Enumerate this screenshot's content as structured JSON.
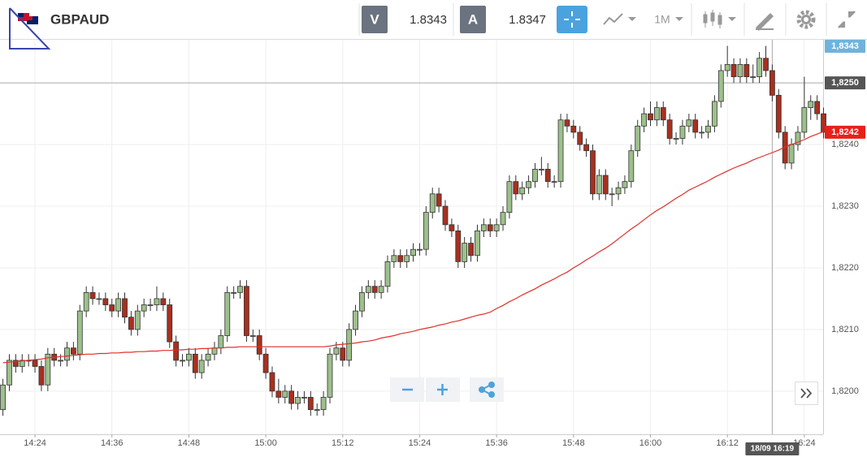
{
  "toolbar": {
    "symbol": "GBPAUD",
    "sell_label": "V",
    "sell_price": "1.8343",
    "buy_label": "A",
    "buy_price": "1.8347",
    "timeframe": "1M"
  },
  "chart_data": {
    "type": "candlestick",
    "categories": [
      null,
      null,
      null,
      null,
      null,
      "14:24",
      null,
      null,
      null,
      null,
      null,
      null,
      null,
      null,
      null,
      null,
      null,
      "14:36",
      null,
      null,
      null,
      null,
      null,
      null,
      null,
      null,
      null,
      null,
      null,
      "14:48",
      null,
      null,
      null,
      null,
      null,
      null,
      null,
      null,
      null,
      null,
      null,
      "15:00",
      null,
      null,
      null,
      null,
      null,
      null,
      null,
      null,
      null,
      null,
      null,
      "15:12",
      null,
      null,
      null,
      null,
      null,
      null,
      null,
      null,
      null,
      null,
      null,
      "15:24",
      null,
      null,
      null,
      null,
      null,
      null,
      null,
      null,
      null,
      null,
      null,
      "15:36",
      null,
      null,
      null,
      null,
      null,
      null,
      null,
      null,
      null,
      null,
      null,
      "15:48",
      null,
      null,
      null,
      null,
      null,
      null,
      null,
      null,
      null,
      null,
      null,
      "16:00",
      null,
      null,
      null,
      null,
      null,
      null,
      null,
      null,
      null,
      null,
      null,
      "16:12",
      null,
      null,
      null,
      null,
      null,
      null,
      null,
      null,
      null,
      null,
      null,
      "16:24",
      null,
      null,
      null
    ],
    "open": [
      1.8197,
      1.8201,
      1.8205,
      1.8204,
      1.8205,
      1.8205,
      1.8204,
      1.8201,
      1.8206,
      1.8205,
      1.8205,
      1.8207,
      1.8206,
      1.8213,
      1.8216,
      1.8215,
      1.8215,
      1.8214,
      1.8213,
      1.8215,
      1.8212,
      1.821,
      1.8213,
      1.8214,
      1.8214,
      1.8215,
      1.8214,
      1.8208,
      1.8205,
      1.8205,
      1.8206,
      1.8203,
      1.8205,
      1.8206,
      1.8207,
      1.8209,
      1.8216,
      1.8216,
      1.8217,
      1.8209,
      1.8209,
      1.8206,
      1.8203,
      1.82,
      1.8199,
      1.82,
      1.8198,
      1.8199,
      1.8199,
      1.8197,
      1.8197,
      1.8199,
      1.8206,
      1.8207,
      1.8205,
      1.821,
      1.8213,
      1.8216,
      1.8217,
      1.8216,
      1.8217,
      1.8221,
      1.8222,
      1.8221,
      1.8222,
      1.8223,
      1.8223,
      1.8229,
      1.8232,
      1.823,
      1.8227,
      1.8226,
      1.8221,
      1.8224,
      1.8222,
      1.8226,
      1.8227,
      1.8226,
      1.8227,
      1.8229,
      1.8234,
      1.8232,
      1.8233,
      1.8234,
      1.8236,
      1.8236,
      1.8234,
      1.8234,
      1.8244,
      1.8243,
      1.8242,
      1.824,
      1.8239,
      1.8232,
      1.8235,
      1.8232,
      1.8232,
      1.8233,
      1.8234,
      1.8239,
      1.8243,
      1.8245,
      1.8244,
      1.8246,
      1.8244,
      1.8241,
      1.8241,
      1.8243,
      1.8244,
      1.8242,
      1.8242,
      1.8243,
      1.8247,
      1.8252,
      1.8253,
      1.8251,
      1.8253,
      1.8251,
      1.8251,
      1.8254,
      1.8252,
      1.8248,
      1.8242,
      1.8237,
      1.824,
      1.8242,
      1.8246,
      1.8247,
      1.8245
    ],
    "high": [
      1.8202,
      1.8206,
      1.8206,
      1.8206,
      1.8206,
      1.8206,
      1.8205,
      1.8207,
      1.8207,
      1.8206,
      1.8208,
      1.8208,
      1.8214,
      1.8217,
      1.8217,
      1.8216,
      1.8216,
      1.8215,
      1.8216,
      1.8216,
      1.8213,
      1.8214,
      1.8215,
      1.8215,
      1.8217,
      1.8216,
      1.8215,
      1.8209,
      1.8206,
      1.8207,
      1.8207,
      1.8206,
      1.8207,
      1.8208,
      1.821,
      1.8217,
      1.8217,
      1.8218,
      1.8218,
      1.821,
      1.821,
      1.8207,
      1.8204,
      1.8202,
      1.8201,
      1.8201,
      1.82,
      1.82,
      1.82,
      1.8198,
      1.82,
      1.8207,
      1.8208,
      1.8208,
      1.8211,
      1.8214,
      1.8217,
      1.8218,
      1.8218,
      1.8218,
      1.8222,
      1.8223,
      1.8223,
      1.8223,
      1.8224,
      1.8224,
      1.823,
      1.8233,
      1.8233,
      1.8231,
      1.8228,
      1.8227,
      1.8225,
      1.8225,
      1.8227,
      1.8228,
      1.8228,
      1.8228,
      1.823,
      1.8235,
      1.8235,
      1.8234,
      1.8235,
      1.8237,
      1.8238,
      1.8237,
      1.8235,
      1.8245,
      1.8245,
      1.8244,
      1.8243,
      1.8241,
      1.824,
      1.8236,
      1.8236,
      1.8233,
      1.8234,
      1.8235,
      1.824,
      1.8244,
      1.8246,
      1.8247,
      1.8247,
      1.8247,
      1.8245,
      1.8242,
      1.8244,
      1.8245,
      1.8245,
      1.8243,
      1.8244,
      1.8248,
      1.8253,
      1.8256,
      1.8254,
      1.8254,
      1.8254,
      1.8253,
      1.8255,
      1.8256,
      1.8253,
      1.8249,
      1.8243,
      1.8241,
      1.8243,
      1.8251,
      1.8248,
      1.8248,
      1.8246
    ],
    "low": [
      1.8196,
      1.82,
      1.8203,
      1.8203,
      1.8204,
      1.8203,
      1.82,
      1.82,
      1.8204,
      1.8204,
      1.8204,
      1.8205,
      1.8205,
      1.8212,
      1.8214,
      1.8214,
      1.8213,
      1.8212,
      1.8212,
      1.8211,
      1.8209,
      1.8209,
      1.8212,
      1.8213,
      1.8213,
      1.8213,
      1.8207,
      1.8204,
      1.8204,
      1.8204,
      1.8202,
      1.8202,
      1.8204,
      1.8205,
      1.8206,
      1.8208,
      1.8215,
      1.8215,
      1.8208,
      1.8208,
      1.8205,
      1.8202,
      1.8199,
      1.8198,
      1.8198,
      1.8197,
      1.8197,
      1.8198,
      1.8196,
      1.8196,
      1.8196,
      1.8198,
      1.8205,
      1.8204,
      1.8204,
      1.8209,
      1.8212,
      1.8215,
      1.8215,
      1.8215,
      1.8216,
      1.822,
      1.822,
      1.822,
      1.8221,
      1.8222,
      1.8222,
      1.8228,
      1.8229,
      1.8226,
      1.8225,
      1.822,
      1.822,
      1.8221,
      1.8221,
      1.8225,
      1.8225,
      1.8225,
      1.8226,
      1.8228,
      1.8231,
      1.8231,
      1.8232,
      1.8233,
      1.8235,
      1.8233,
      1.8233,
      1.8233,
      1.8242,
      1.8241,
      1.8239,
      1.8238,
      1.8231,
      1.8231,
      1.8231,
      1.823,
      1.8231,
      1.8232,
      1.8233,
      1.8238,
      1.8242,
      1.8243,
      1.8243,
      1.8243,
      1.824,
      1.824,
      1.824,
      1.8242,
      1.8241,
      1.8241,
      1.8241,
      1.8242,
      1.8246,
      1.8251,
      1.825,
      1.825,
      1.825,
      1.825,
      1.825,
      1.8251,
      1.8247,
      1.8241,
      1.8236,
      1.8236,
      1.8239,
      1.8241,
      1.8244,
      1.8244,
      1.8241
    ],
    "close": [
      1.8201,
      1.8205,
      1.8204,
      1.8205,
      1.8205,
      1.8204,
      1.8201,
      1.8206,
      1.8205,
      1.8205,
      1.8207,
      1.8206,
      1.8213,
      1.8216,
      1.8215,
      1.8215,
      1.8214,
      1.8213,
      1.8215,
      1.8212,
      1.821,
      1.8213,
      1.8214,
      1.8214,
      1.8215,
      1.8214,
      1.8208,
      1.8205,
      1.8205,
      1.8206,
      1.8203,
      1.8205,
      1.8206,
      1.8207,
      1.8209,
      1.8216,
      1.8216,
      1.8217,
      1.8209,
      1.8209,
      1.8206,
      1.8203,
      1.82,
      1.8199,
      1.82,
      1.8198,
      1.8199,
      1.8199,
      1.8197,
      1.8197,
      1.8199,
      1.8206,
      1.8207,
      1.8205,
      1.821,
      1.8213,
      1.8216,
      1.8217,
      1.8216,
      1.8217,
      1.8221,
      1.8222,
      1.8221,
      1.8222,
      1.8223,
      1.8223,
      1.8229,
      1.8232,
      1.823,
      1.8227,
      1.8226,
      1.8221,
      1.8224,
      1.8222,
      1.8226,
      1.8227,
      1.8226,
      1.8227,
      1.8229,
      1.8234,
      1.8232,
      1.8233,
      1.8234,
      1.8236,
      1.8236,
      1.8234,
      1.8234,
      1.8244,
      1.8243,
      1.8242,
      1.824,
      1.8239,
      1.8232,
      1.8235,
      1.8232,
      1.8232,
      1.8233,
      1.8234,
      1.8239,
      1.8243,
      1.8245,
      1.8244,
      1.8246,
      1.8244,
      1.8241,
      1.8241,
      1.8243,
      1.8244,
      1.8242,
      1.8242,
      1.8243,
      1.8247,
      1.8252,
      1.8253,
      1.8251,
      1.8253,
      1.8251,
      1.8251,
      1.8254,
      1.8252,
      1.8248,
      1.8242,
      1.8237,
      1.824,
      1.8242,
      1.8246,
      1.8247,
      1.8245,
      1.8242
    ],
    "up_color": "#9dc08b",
    "down_color": "#a8301f",
    "moving_average": {
      "color": "#e0302a",
      "values": [
        1.82046,
        1.82047,
        1.82048,
        1.82049,
        1.8205,
        1.82051,
        1.82052,
        1.82054,
        1.82055,
        1.82056,
        1.82057,
        1.82058,
        1.82059,
        1.8206,
        1.8206,
        1.82061,
        1.82061,
        1.82062,
        1.82062,
        1.82063,
        1.82063,
        1.82064,
        1.82064,
        1.82065,
        1.82065,
        1.82066,
        1.82066,
        1.82067,
        1.82067,
        1.82068,
        1.82068,
        1.82069,
        1.82069,
        1.8207,
        1.8207,
        1.82071,
        1.82071,
        1.82072,
        1.82072,
        1.82072,
        1.82072,
        1.82072,
        1.82072,
        1.82072,
        1.82072,
        1.82072,
        1.82072,
        1.82072,
        1.82072,
        1.82072,
        1.82072,
        1.82073,
        1.82075,
        1.82076,
        1.82077,
        1.82078,
        1.8208,
        1.82081,
        1.82083,
        1.82086,
        1.82088,
        1.8209,
        1.82093,
        1.82095,
        1.82097,
        1.821,
        1.82102,
        1.82104,
        1.82107,
        1.82109,
        1.82112,
        1.82114,
        1.82117,
        1.8212,
        1.82123,
        1.82125,
        1.82128,
        1.82134,
        1.82139,
        1.82145,
        1.8215,
        1.82156,
        1.82161,
        1.82166,
        1.82172,
        1.82177,
        1.82182,
        1.82188,
        1.82193,
        1.822,
        1.82206,
        1.82213,
        1.82219,
        1.82226,
        1.82232,
        1.82239,
        1.82247,
        1.82255,
        1.82263,
        1.8227,
        1.82278,
        1.82286,
        1.82293,
        1.82299,
        1.82306,
        1.82313,
        1.82319,
        1.82326,
        1.82331,
        1.82336,
        1.82341,
        1.82347,
        1.82352,
        1.82357,
        1.82362,
        1.82366,
        1.8237,
        1.82375,
        1.82379,
        1.82383,
        1.82387,
        1.82391,
        1.82396,
        1.824,
        1.82404,
        1.82408,
        1.82413,
        1.82417,
        1.82421
      ]
    },
    "ylim": [
      1.8193,
      1.8257
    ],
    "yticks": [
      {
        "value": 1.824,
        "label": "1,8240"
      },
      {
        "value": 1.823,
        "label": "1,8230"
      },
      {
        "value": 1.822,
        "label": "1,8220"
      },
      {
        "value": 1.821,
        "label": "1,8210"
      },
      {
        "value": 1.82,
        "label": "1,8200"
      }
    ],
    "grid": true,
    "crosshair": {
      "price": {
        "value": 1.825,
        "label": "1,8250"
      },
      "time": "18/09 16:19"
    },
    "last_price": {
      "value": 1.8242,
      "label": "1,8242"
    },
    "top_price_label": "1,8343"
  }
}
